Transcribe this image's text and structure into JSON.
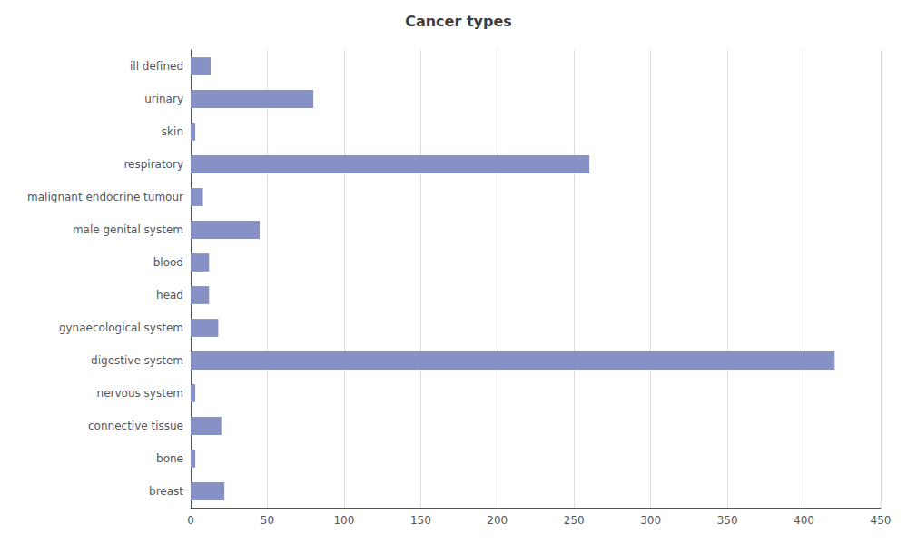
{
  "chart_data": {
    "type": "bar",
    "orientation": "horizontal",
    "title": "Cancer types",
    "categories": [
      "breast",
      "bone",
      "connective tissue",
      "nervous system",
      "digestive system",
      "gynaecological system",
      "head",
      "blood",
      "male genital system",
      "malignant endocrine tumour",
      "respiratory",
      "skin",
      "urinary",
      "ill defined"
    ],
    "values": [
      22,
      3,
      20,
      3,
      420,
      18,
      12,
      12,
      45,
      8,
      260,
      3,
      80,
      13
    ],
    "color": "#8891c5",
    "xlim": [
      0,
      450
    ],
    "xticks": [
      0,
      50,
      100,
      150,
      200,
      250,
      300,
      350,
      400,
      450
    ],
    "grid": true
  }
}
